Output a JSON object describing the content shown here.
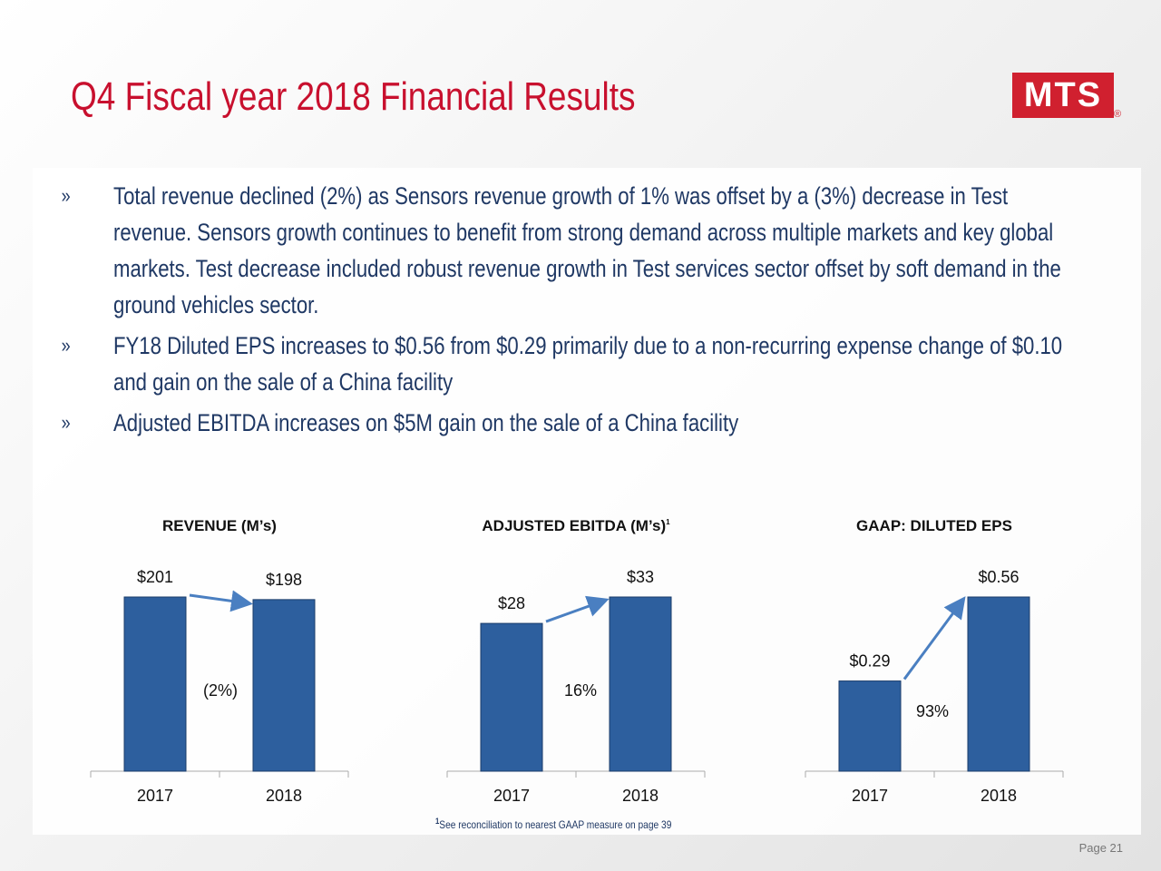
{
  "header": {
    "title": "Q4 Fiscal year 2018 Financial Results",
    "logo": "MTS",
    "logo_mark": "®"
  },
  "bullets": [
    "Total revenue declined (2%) as Sensors revenue growth of 1% was offset by a (3%) decrease in Test revenue. Sensors growth continues to benefit from strong demand across multiple markets and key global markets. Test decrease included robust revenue growth in Test services sector offset by soft demand in the ground vehicles sector.",
    "FY18 Diluted EPS increases to $0.56 from $0.29 primarily due to a non-recurring expense change of $0.10 and gain on the sale of a China facility",
    "Adjusted EBITDA increases on $5M gain on the sale of a China facility"
  ],
  "chart_data": [
    {
      "type": "bar",
      "title": "REVENUE (M’s)",
      "categories": [
        "2017",
        "2018"
      ],
      "values": [
        201,
        198
      ],
      "value_labels": [
        "$201",
        "$198"
      ],
      "color": "#2d5f9e",
      "annotation": "(2%)"
    },
    {
      "type": "bar",
      "title": "ADJUSTED EBITDA (M’s)",
      "title_mark": "1",
      "categories": [
        "2017",
        "2018"
      ],
      "values": [
        28,
        33
      ],
      "value_labels": [
        "$28",
        "$33"
      ],
      "color": "#2d5f9e",
      "annotation": "16%"
    },
    {
      "type": "bar",
      "title": "GAAP: DILUTED EPS",
      "categories": [
        "2017",
        "2018"
      ],
      "values": [
        0.29,
        0.56
      ],
      "value_labels": [
        "$0.29",
        "$0.56"
      ],
      "color": "#2d5f9e",
      "annotation": "93%"
    }
  ],
  "footnote": {
    "mark": "1",
    "text": "See reconciliation to nearest GAAP measure on page 39"
  },
  "footer": {
    "page": "Page 21"
  }
}
